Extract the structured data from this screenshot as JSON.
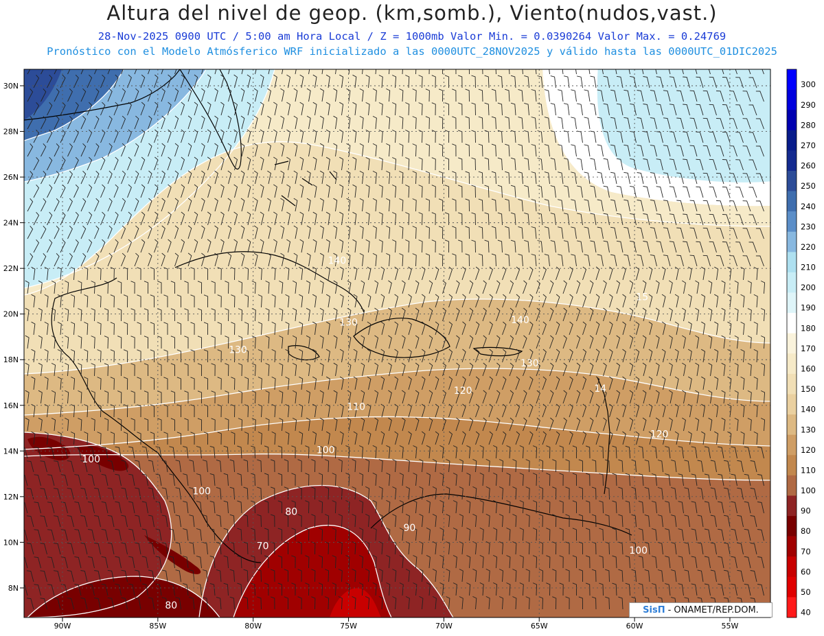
{
  "header": {
    "title": "Altura del nivel de geop. (km,somb.), Viento(nudos,vast.)",
    "subtitle_1": "28-Nov-2025  0900 UTC / 5:00 am Hora Local / Z = 1000mb  Valor Min. = 0.0390264  Valor Max. = 0.24769",
    "subtitle_2": "Pronóstico con el Modelo Atmósferico WRF inicializado a las 0000UTC_28NOV2025 y válido hasta las  0000UTC_01DIC2025"
  },
  "axes": {
    "lat_labels": [
      "30N",
      "28N",
      "26N",
      "24N",
      "22N",
      "20N",
      "18N",
      "16N",
      "14N",
      "12N",
      "10N",
      "8N"
    ],
    "lon_labels": [
      "90W",
      "85W",
      "80W",
      "75W",
      "70W",
      "65W",
      "60W",
      "55W"
    ]
  },
  "colorbar": {
    "labels": [
      "300",
      "290",
      "280",
      "270",
      "260",
      "250",
      "240",
      "230",
      "220",
      "210",
      "200",
      "190",
      "180",
      "170",
      "160",
      "150",
      "140",
      "130",
      "120",
      "110",
      "100",
      "90",
      "80",
      "70",
      "60",
      "50",
      "40"
    ],
    "colors": [
      "#0000ff",
      "#0000dd",
      "#0000b0",
      "#081c8a",
      "#142a8f",
      "#2c4c98",
      "#3f6eae",
      "#5b8ec8",
      "#88b8e0",
      "#aee0f0",
      "#c8edf6",
      "#dff5f9",
      "#ffffff",
      "#faf3dc",
      "#f6eac8",
      "#f1dfb6",
      "#ead0a0",
      "#ddb983",
      "#cf9e65",
      "#c2884e",
      "#b06a44",
      "#8e2424",
      "#780000",
      "#a00000",
      "#c80000",
      "#e00000",
      "#ff1a1a"
    ]
  },
  "contour_labels": [
    {
      "text": "140",
      "lon": -75.6,
      "lat": 22.2
    },
    {
      "text": "130",
      "lon": -75.0,
      "lat": 19.5
    },
    {
      "text": "130",
      "lon": -80.8,
      "lat": 18.3
    },
    {
      "text": "140",
      "lon": -66.0,
      "lat": 19.6
    },
    {
      "text": "15",
      "lon": -59.6,
      "lat": 20.6
    },
    {
      "text": "130",
      "lon": -65.5,
      "lat": 17.7
    },
    {
      "text": "120",
      "lon": -69.0,
      "lat": 16.5
    },
    {
      "text": "110",
      "lon": -74.6,
      "lat": 15.8
    },
    {
      "text": "14",
      "lon": -61.8,
      "lat": 16.6
    },
    {
      "text": "120",
      "lon": -58.7,
      "lat": 14.6
    },
    {
      "text": "100",
      "lon": -76.2,
      "lat": 13.9
    },
    {
      "text": "100",
      "lon": -88.5,
      "lat": 13.5
    },
    {
      "text": "100",
      "lon": -82.7,
      "lat": 12.1
    },
    {
      "text": "80",
      "lon": -78.0,
      "lat": 11.2
    },
    {
      "text": "90",
      "lon": -71.8,
      "lat": 10.5
    },
    {
      "text": "70",
      "lon": -79.5,
      "lat": 9.7
    },
    {
      "text": "100",
      "lon": -59.8,
      "lat": 9.5
    },
    {
      "text": "80",
      "lon": -84.3,
      "lat": 7.1
    }
  ],
  "credit": {
    "brand": "SisΠ",
    "text": "- ONAMET/REP.DOM."
  }
}
